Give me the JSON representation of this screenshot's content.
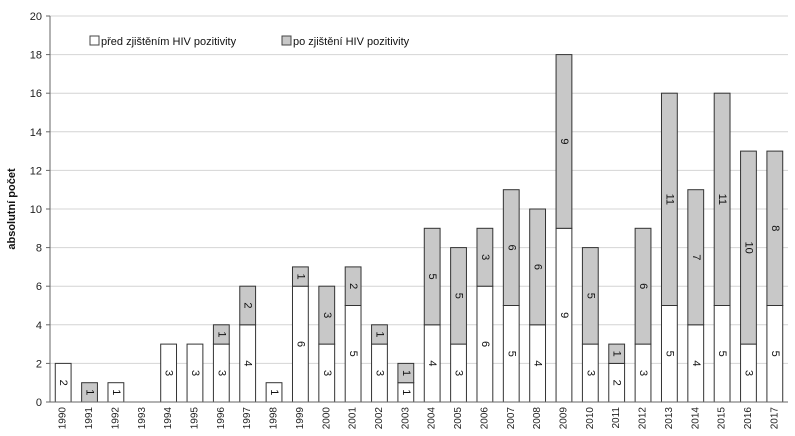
{
  "chart_data": {
    "type": "bar",
    "stacked": true,
    "ylabel": "absolutní počet",
    "xlabel": "",
    "ylim": [
      0,
      20
    ],
    "yticks": [
      0,
      2,
      4,
      6,
      8,
      10,
      12,
      14,
      16,
      18,
      20
    ],
    "grid": "horizontal",
    "legend_position": "top-left",
    "categories": [
      "1990",
      "1991",
      "1992",
      "1993",
      "1994",
      "1995",
      "1996",
      "1997",
      "1998",
      "1999",
      "2000",
      "2001",
      "2002",
      "2003",
      "2004",
      "2005",
      "2006",
      "2007",
      "2008",
      "2009",
      "2010",
      "2011",
      "2012",
      "2013",
      "2014",
      "2015",
      "2016",
      "2017"
    ],
    "series": [
      {
        "name": "před zjištěním HIV pozitivity",
        "color": "#ffffff",
        "values": [
          2,
          0,
          1,
          0,
          3,
          3,
          3,
          4,
          1,
          6,
          3,
          5,
          3,
          1,
          4,
          3,
          6,
          5,
          4,
          9,
          3,
          2,
          3,
          5,
          4,
          5,
          3,
          5
        ],
        "labels": [
          "2",
          "",
          "1",
          "",
          "3",
          "3",
          "3",
          "4",
          "1",
          "6",
          "3",
          "5",
          "3",
          "1",
          "4",
          "3",
          "6",
          "5",
          "4",
          "9",
          "3",
          "2",
          "3",
          "5",
          "4",
          "5",
          "3",
          "5"
        ]
      },
      {
        "name": "po zjištění HIV pozitivity",
        "color": "#c8c8c8",
        "values": [
          0,
          1,
          0,
          0,
          0,
          0,
          1,
          2,
          0,
          1,
          3,
          2,
          1,
          1,
          5,
          5,
          3,
          6,
          6,
          9,
          5,
          1,
          6,
          11,
          7,
          11,
          10,
          8
        ],
        "labels": [
          "",
          "1",
          "",
          "",
          "",
          "",
          "1",
          "2",
          "",
          "1",
          "3",
          "2",
          "1",
          "1",
          "5",
          "5",
          "3",
          "6",
          "6",
          "9",
          "5",
          "1",
          "6",
          "11",
          "7",
          "11",
          "10",
          "8"
        ]
      }
    ]
  }
}
